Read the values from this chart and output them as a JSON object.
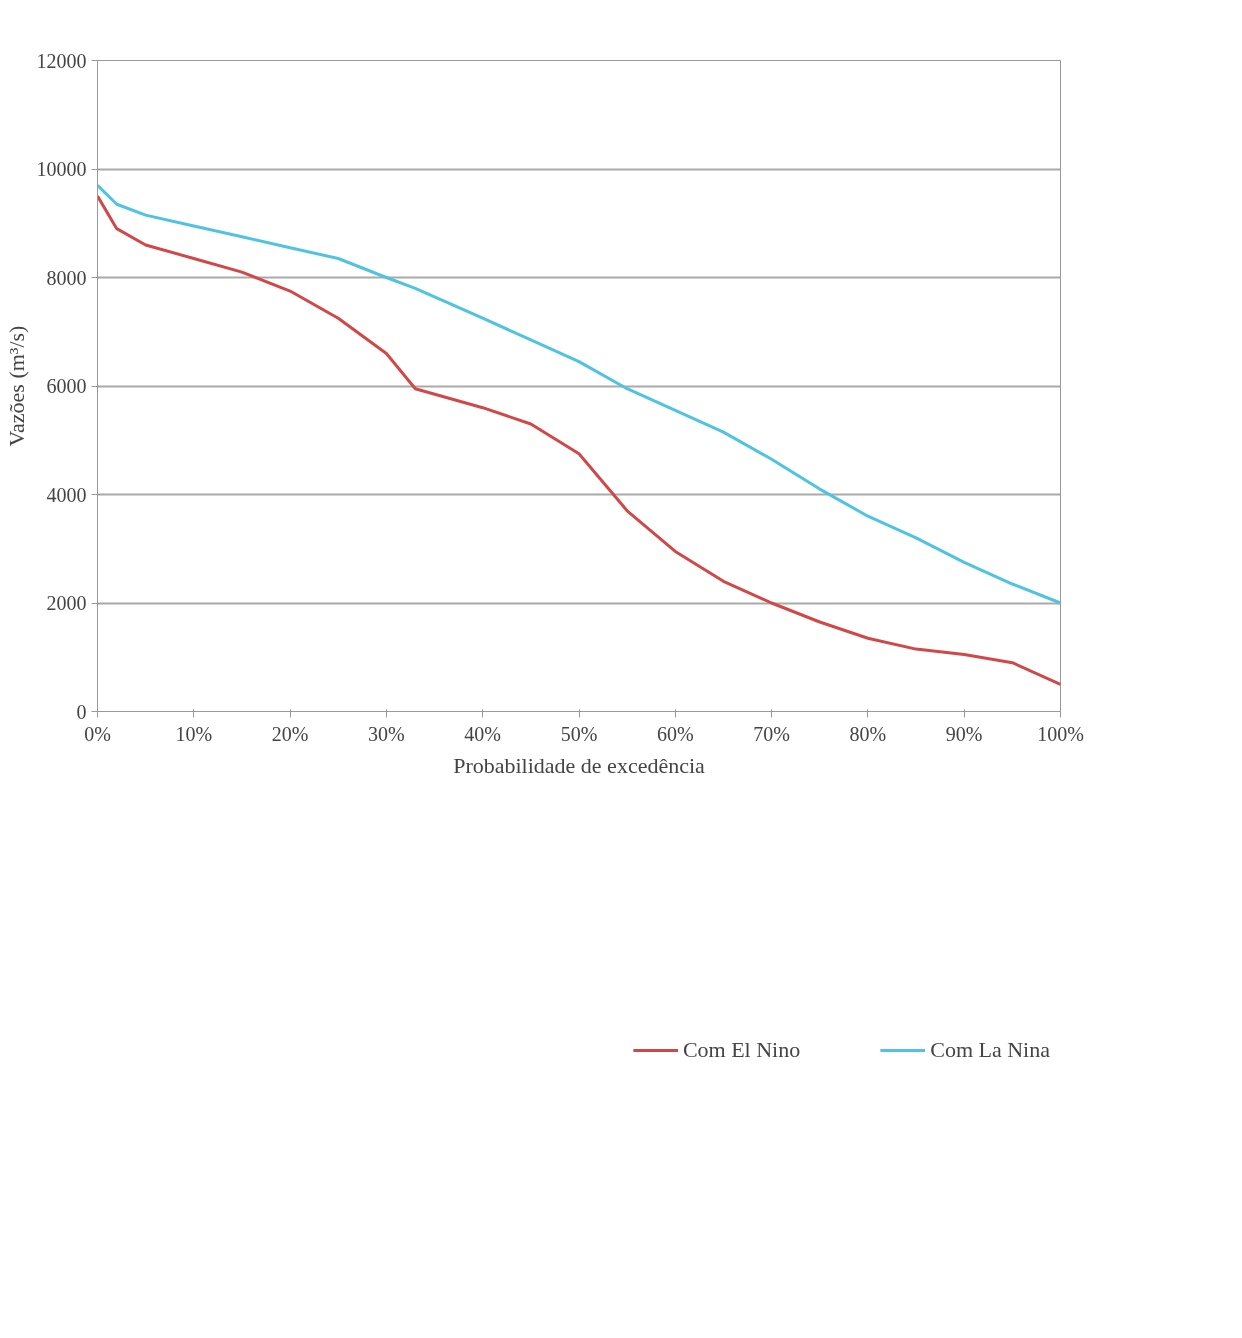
{
  "chart_data": {
    "type": "line",
    "xlabel": "Probabilidade de excedência",
    "ylabel": "Vazões (m³/s)",
    "x": [
      0,
      2,
      5,
      10,
      15,
      20,
      25,
      30,
      33,
      40,
      45,
      50,
      55,
      60,
      65,
      70,
      75,
      80,
      85,
      90,
      95,
      100
    ],
    "series": [
      {
        "name": "Com El Nino",
        "color": "#d04848",
        "values": [
          9500,
          8900,
          8600,
          8350,
          8100,
          7750,
          7250,
          6600,
          5950,
          5600,
          5300,
          4750,
          3700,
          2950,
          2400,
          2000,
          1650,
          1350,
          1150,
          1050,
          900,
          500
        ]
      },
      {
        "name": "Com La Nina",
        "color": "#4fc3e0",
        "values": [
          9700,
          9350,
          9150,
          8950,
          8750,
          8550,
          8350,
          8000,
          7800,
          7250,
          6850,
          6450,
          5950,
          5550,
          5150,
          4650,
          4100,
          3600,
          3200,
          2750,
          2350,
          2000
        ]
      }
    ],
    "xlim": [
      0,
      100
    ],
    "ylim": [
      0,
      12000
    ],
    "xticks": [
      {
        "value": 0,
        "label": "0%"
      },
      {
        "value": 10,
        "label": "10%"
      },
      {
        "value": 20,
        "label": "20%"
      },
      {
        "value": 30,
        "label": "30%"
      },
      {
        "value": 40,
        "label": "40%"
      },
      {
        "value": 50,
        "label": "50%"
      },
      {
        "value": 60,
        "label": "60%"
      },
      {
        "value": 70,
        "label": "70%"
      },
      {
        "value": 80,
        "label": "80%"
      },
      {
        "value": 90,
        "label": "90%"
      },
      {
        "value": 100,
        "label": "100%"
      }
    ],
    "yticks": [
      0,
      2000,
      4000,
      6000,
      8000,
      10000,
      12000
    ],
    "grid": "y",
    "legend": "bottom",
    "marker": "none",
    "line_style": "solid"
  }
}
